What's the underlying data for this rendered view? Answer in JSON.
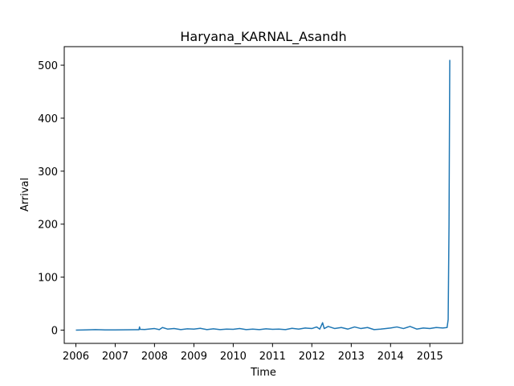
{
  "chart_data": {
    "type": "line",
    "title": "Haryana_KARNAL_Asandh",
    "xlabel": "Time",
    "ylabel": "Arrival",
    "x_ticks": [
      "2006",
      "2007",
      "2008",
      "2009",
      "2010",
      "2011",
      "2012",
      "2013",
      "2014",
      "2015"
    ],
    "y_ticks": [
      "0",
      "100",
      "200",
      "300",
      "400",
      "500"
    ],
    "xlim": [
      "2005-09-15",
      "2015-11-01"
    ],
    "ylim": [
      -25,
      535
    ],
    "grid": false,
    "series": [
      {
        "color": "#1f77b4",
        "points": [
          [
            "2006-01-01",
            0
          ],
          [
            "2006-04-01",
            0.5
          ],
          [
            "2006-07-01",
            1
          ],
          [
            "2006-10-01",
            0.4
          ],
          [
            "2007-01-01",
            0.5
          ],
          [
            "2007-04-01",
            0.6
          ],
          [
            "2007-07-01",
            0.8
          ],
          [
            "2007-08-10",
            0.8
          ],
          [
            "2007-08-15",
            6
          ],
          [
            "2007-08-20",
            1.5
          ],
          [
            "2007-10-01",
            1.2
          ],
          [
            "2008-01-01",
            3
          ],
          [
            "2008-02-15",
            1
          ],
          [
            "2008-03-15",
            5
          ],
          [
            "2008-05-01",
            2
          ],
          [
            "2008-07-01",
            3
          ],
          [
            "2008-09-01",
            1
          ],
          [
            "2008-11-01",
            2.5
          ],
          [
            "2009-01-01",
            2
          ],
          [
            "2009-03-01",
            3.5
          ],
          [
            "2009-05-01",
            1
          ],
          [
            "2009-07-01",
            2.5
          ],
          [
            "2009-09-01",
            1
          ],
          [
            "2009-11-01",
            2
          ],
          [
            "2010-01-01",
            1.5
          ],
          [
            "2010-03-01",
            3
          ],
          [
            "2010-05-01",
            1
          ],
          [
            "2010-07-01",
            2
          ],
          [
            "2010-09-01",
            1
          ],
          [
            "2010-11-01",
            2.5
          ],
          [
            "2011-01-01",
            1.5
          ],
          [
            "2011-03-01",
            2
          ],
          [
            "2011-05-01",
            1
          ],
          [
            "2011-07-01",
            3.5
          ],
          [
            "2011-09-01",
            2
          ],
          [
            "2011-11-01",
            4
          ],
          [
            "2012-01-01",
            3
          ],
          [
            "2012-02-15",
            6
          ],
          [
            "2012-03-15",
            2
          ],
          [
            "2012-04-10",
            14
          ],
          [
            "2012-04-25",
            3
          ],
          [
            "2012-06-01",
            7
          ],
          [
            "2012-08-01",
            3
          ],
          [
            "2012-10-01",
            5
          ],
          [
            "2012-12-01",
            2
          ],
          [
            "2013-02-01",
            6
          ],
          [
            "2013-04-01",
            3
          ],
          [
            "2013-06-01",
            5
          ],
          [
            "2013-08-01",
            1
          ],
          [
            "2013-10-01",
            2
          ],
          [
            "2014-01-01",
            4
          ],
          [
            "2014-03-01",
            6
          ],
          [
            "2014-05-01",
            3
          ],
          [
            "2014-07-01",
            7
          ],
          [
            "2014-09-01",
            2
          ],
          [
            "2014-11-01",
            4
          ],
          [
            "2015-01-01",
            3
          ],
          [
            "2015-03-01",
            5
          ],
          [
            "2015-05-01",
            4
          ],
          [
            "2015-06-10",
            5
          ],
          [
            "2015-06-20",
            20
          ],
          [
            "2015-06-28",
            200
          ],
          [
            "2015-07-05",
            510
          ]
        ]
      }
    ]
  }
}
